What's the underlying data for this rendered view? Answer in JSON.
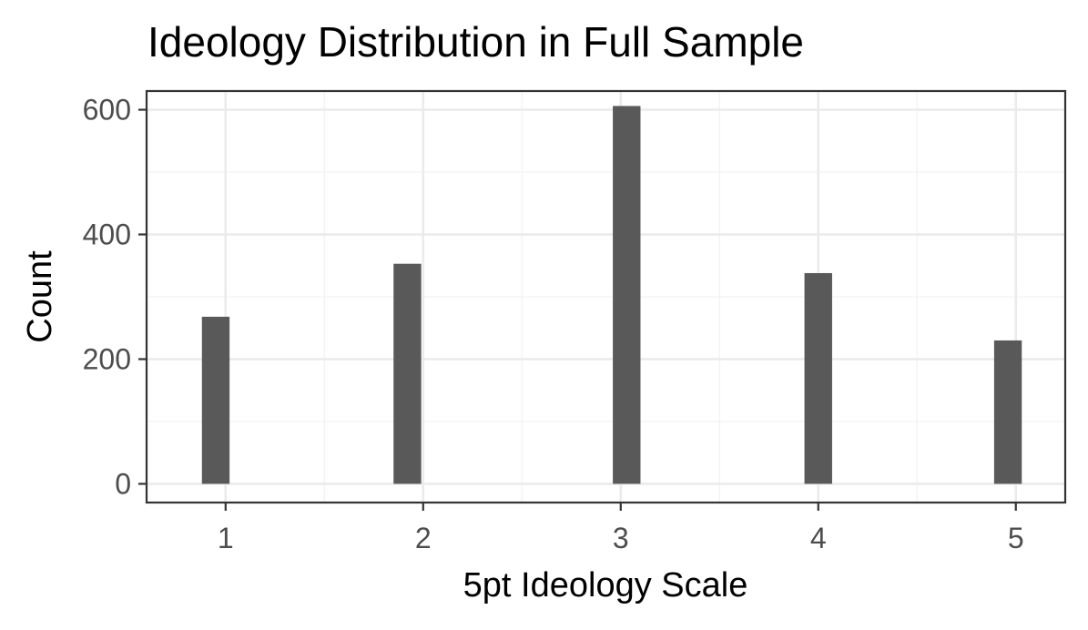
{
  "chart_data": {
    "type": "bar",
    "title": "Ideology Distribution in Full Sample",
    "xlabel": "5pt Ideology Scale",
    "ylabel": "Count",
    "categories": [
      "1",
      "2",
      "3",
      "4",
      "5"
    ],
    "x": [
      0.95,
      1.92,
      3.03,
      4.0,
      4.96
    ],
    "values": [
      268,
      353,
      606,
      338,
      230
    ],
    "xlim": [
      0.6,
      5.25
    ],
    "ylim": [
      -30,
      630
    ],
    "x_ticks": [
      1,
      2,
      3,
      4,
      5
    ],
    "y_ticks": [
      0,
      200,
      400,
      600
    ],
    "x_tick_labels": [
      "1",
      "2",
      "3",
      "4",
      "5"
    ],
    "y_tick_labels": [
      "0",
      "200",
      "400",
      "600"
    ],
    "grid": true,
    "legend": "none",
    "colors": {
      "bar": "#595959",
      "panel_background": "#ffffff",
      "grid_major": "#ebebeb",
      "grid_minor": "#f2f2f2",
      "panel_border": "#333333",
      "tick_text": "#4d4d4d",
      "title_text": "#000000"
    }
  }
}
